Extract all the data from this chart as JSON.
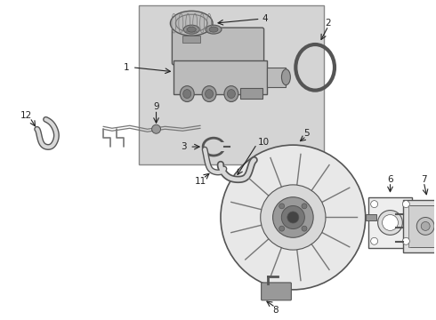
{
  "bg_color": "#ffffff",
  "box_bg": "#d8d8d8",
  "line_color": "#222222",
  "part_color": "#555555",
  "label_color": "#111111"
}
